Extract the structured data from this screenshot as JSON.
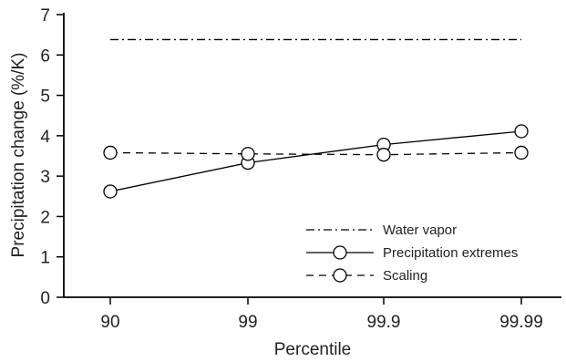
{
  "chart_data": {
    "type": "line",
    "title": "",
    "xlabel": "Percentile",
    "ylabel": "Precipitation change (%/K)",
    "categories": [
      "90",
      "99",
      "99.9",
      "99.99"
    ],
    "ylim": [
      0,
      7
    ],
    "yticks": [
      "0",
      "1",
      "2",
      "3",
      "4",
      "5",
      "6",
      "7"
    ],
    "grid": false,
    "legend_position": "lower-right",
    "series": [
      {
        "name": "Water vapor",
        "values": [
          6.38,
          6.38,
          6.38,
          6.38
        ],
        "linestyle": "dashdot",
        "marker": "none",
        "color": "#000000"
      },
      {
        "name": "Precipitation extremes",
        "values": [
          2.62,
          3.33,
          3.78,
          4.11
        ],
        "linestyle": "solid",
        "marker": "circle",
        "color": "#000000"
      },
      {
        "name": "Scaling",
        "values": [
          3.58,
          3.55,
          3.53,
          3.58
        ],
        "linestyle": "dashed",
        "marker": "circle",
        "color": "#000000"
      }
    ]
  }
}
